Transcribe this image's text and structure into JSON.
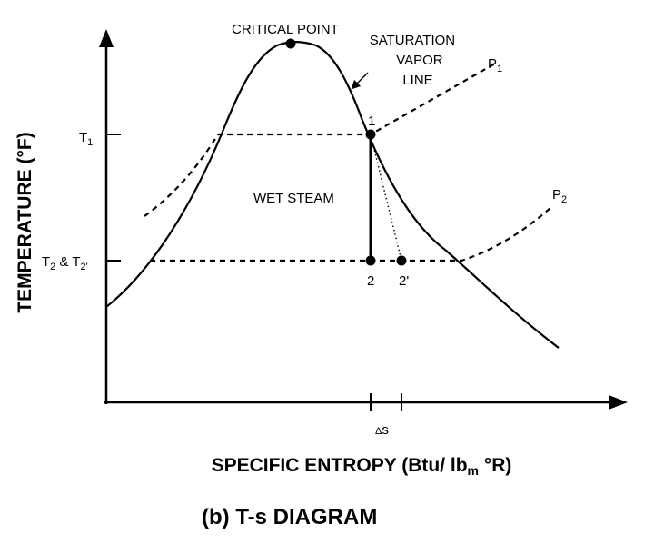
{
  "labels": {
    "critical_point": "CRITICAL POINT",
    "saturation_line": [
      "SATURATION",
      "VAPOR",
      "LINE"
    ],
    "wet_steam": "WET STEAM",
    "p1": {
      "base": "P",
      "sub": "1"
    },
    "p2": {
      "base": "P",
      "sub": "2"
    },
    "t1": {
      "base": "T",
      "sub": "1"
    },
    "t2": {
      "base1": "T",
      "sub1": "2",
      "mid": " & T",
      "sub2": "2'"
    },
    "point_1": "1",
    "point_2": "2",
    "point_2prime": "2'",
    "delta_s": {
      "sym": "Δ",
      "text": "s"
    }
  },
  "axes": {
    "ylabel": "TEMPERATURE (°F)",
    "xlabel": {
      "pre": "SPECIFIC ENTROPY (Btu/ lb",
      "sub": "m",
      "post": " °R)"
    }
  },
  "caption": "(b)  T-s DIAGRAM"
}
